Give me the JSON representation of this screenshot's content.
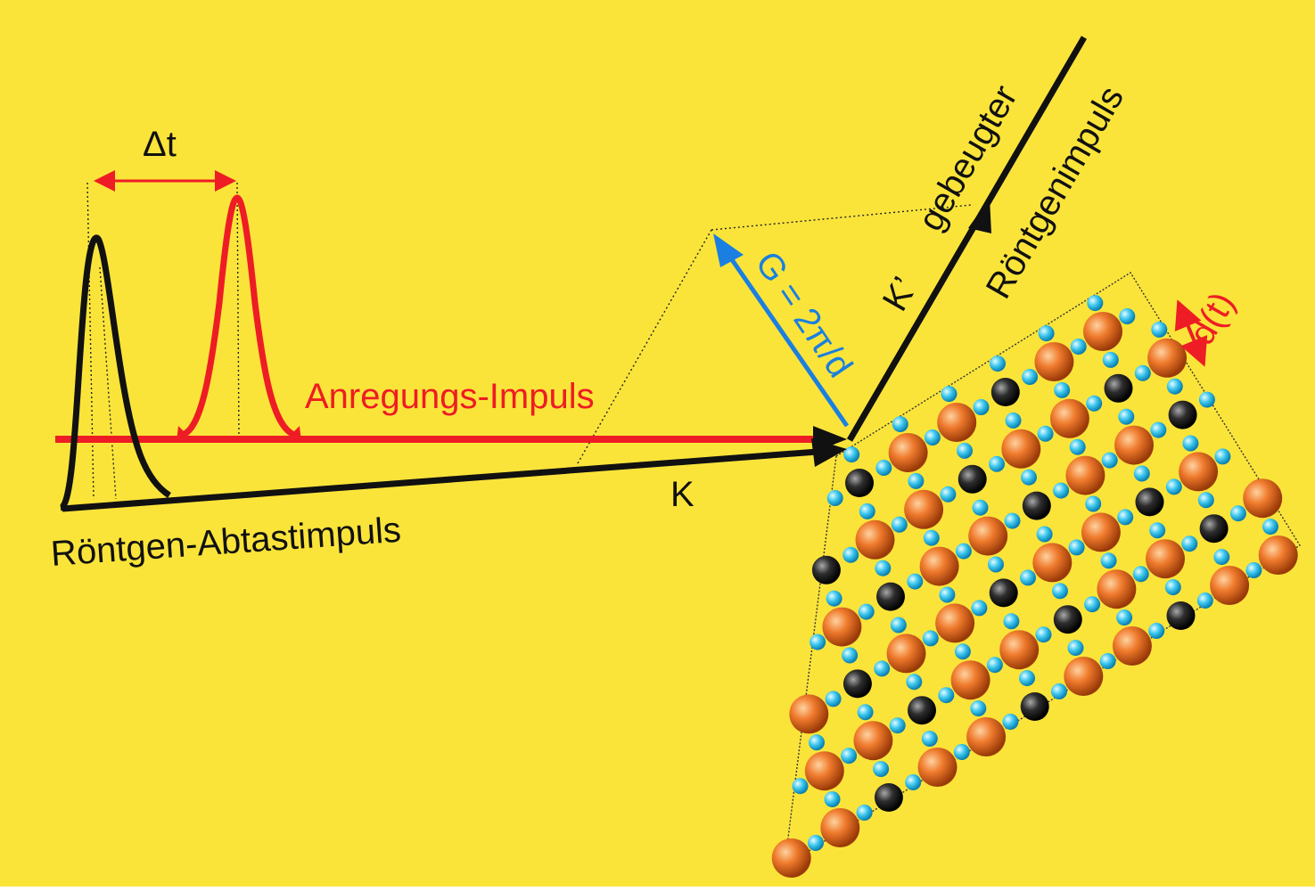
{
  "colors": {
    "background": "#fbe43a",
    "probe": "#111111",
    "pump": "#ee1c24",
    "reciprocal": "#1a7fe0",
    "atom_large": "#e8641c",
    "atom_dark": "#2a2a2a",
    "atom_small": "#38c8ee"
  },
  "labels": {
    "delta_t": "Δt",
    "pump": "Anregungs-Impuls",
    "probe": "Röntgen-Abtastimpuls",
    "k_in": "K",
    "k_out": "K’",
    "g_vector": "G = 2π/d",
    "diffracted_line1": "gebeugter",
    "diffracted_line2": "Röntgenimpuls",
    "spacing": "d(t)"
  }
}
